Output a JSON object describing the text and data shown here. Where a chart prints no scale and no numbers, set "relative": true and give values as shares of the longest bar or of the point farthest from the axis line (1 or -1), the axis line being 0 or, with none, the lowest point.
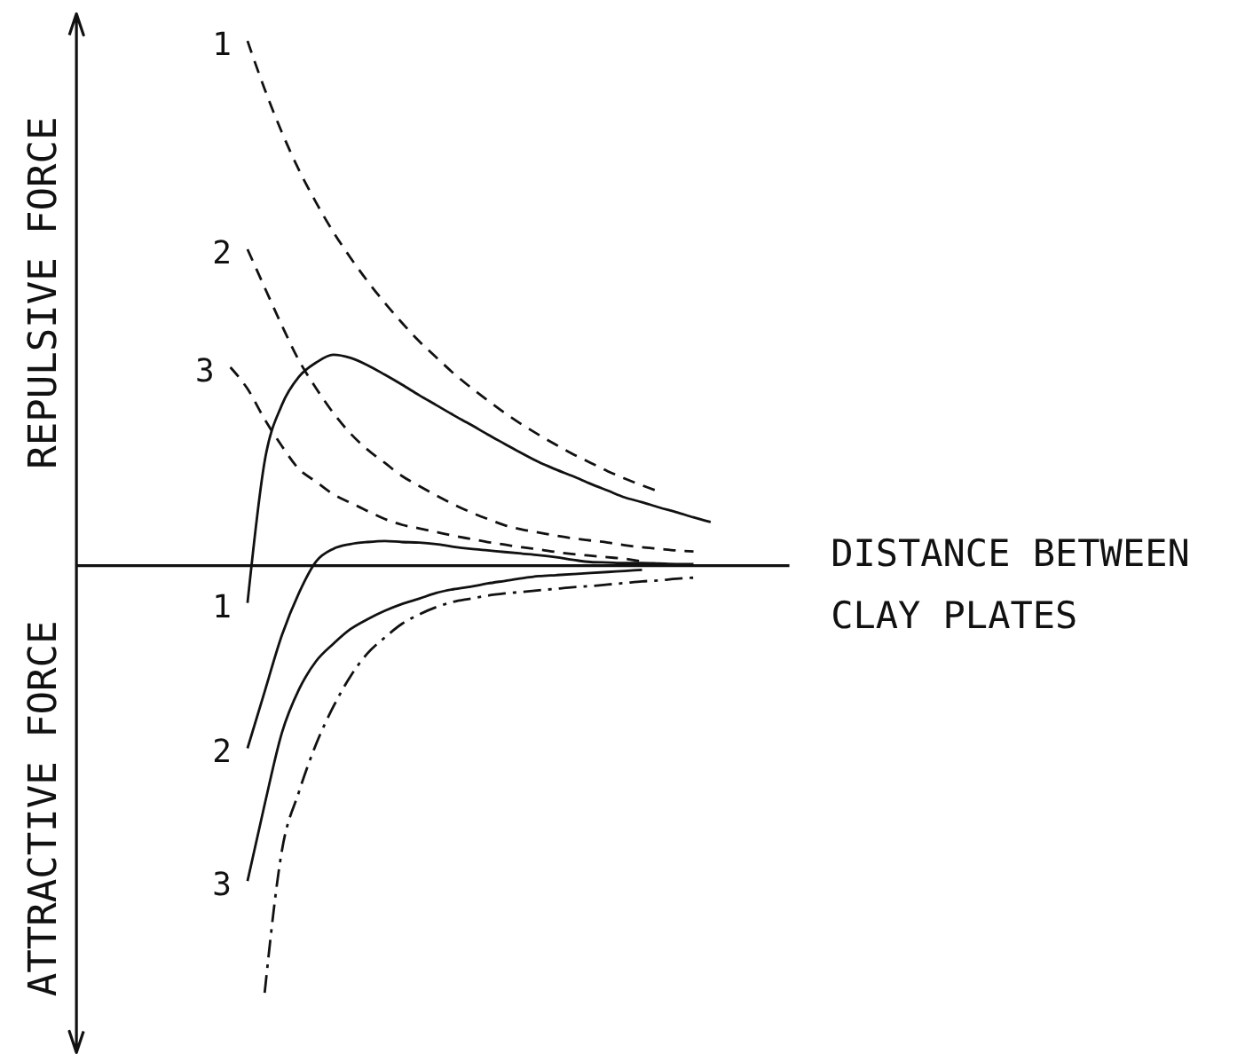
{
  "chart_data": {
    "type": "line",
    "relative": true,
    "ylabel": "REPULSIVE FORCE",
    "xlabel": "DISTANCE BETWEEN CLAY PLATES",
    "annotations": [
      "ATTRACTIVE FORCE"
    ],
    "categories": [
      null,
      null,
      null,
      null,
      null,
      null,
      null,
      null,
      null,
      null,
      null,
      null,
      null,
      null,
      null,
      null,
      null,
      null,
      null,
      null,
      null,
      null,
      null,
      null,
      null,
      null,
      null,
      null,
      null
    ],
    "series": [
      {
        "name": "1",
        "color": "#111111",
        "line_style": "dashed",
        "values": [
          null,
          1.0,
          0.908,
          0.826,
          0.754,
          0.692,
          0.636,
          0.587,
          0.542,
          0.501,
          0.463,
          0.428,
          0.397,
          0.367,
          0.34,
          0.315,
          0.291,
          0.269,
          0.249,
          0.23,
          0.212,
          0.196,
          0.18,
          0.166,
          0.153,
          0.141,
          null,
          null,
          null
        ]
      },
      {
        "name": "2",
        "color": "#111111",
        "line_style": "dashed",
        "values": [
          null,
          0.603,
          0.53,
          0.458,
          0.391,
          0.338,
          0.291,
          0.252,
          0.221,
          0.196,
          0.171,
          0.152,
          0.134,
          0.117,
          0.102,
          0.089,
          0.077,
          0.069,
          0.063,
          0.057,
          0.052,
          0.048,
          0.044,
          0.039,
          0.035,
          0.032,
          0.029,
          0.027,
          null
        ]
      },
      {
        "name": "3",
        "color": "#111111",
        "line_style": "dashed",
        "values": [
          0.378,
          0.337,
          0.279,
          0.228,
          0.184,
          0.16,
          0.136,
          0.12,
          0.104,
          0.089,
          0.078,
          0.071,
          0.064,
          0.057,
          0.051,
          0.045,
          0.04,
          0.035,
          0.031,
          0.026,
          0.022,
          0.019,
          0.016,
          0.013,
          0.008,
          null,
          null,
          null,
          null
        ]
      },
      {
        "name": "1",
        "color": "#111111",
        "line_style": "solid",
        "values": [
          null,
          -0.071,
          0.199,
          0.306,
          0.36,
          0.387,
          0.402,
          0.396,
          0.382,
          0.364,
          0.345,
          0.325,
          0.306,
          0.287,
          0.269,
          0.25,
          0.232,
          0.214,
          0.197,
          0.183,
          0.17,
          0.156,
          0.143,
          0.13,
          0.121,
          0.111,
          0.102,
          0.092,
          0.083
        ]
      },
      {
        "name": "2",
        "color": "#111111",
        "line_style": "solid",
        "values": [
          null,
          -0.348,
          -0.24,
          -0.133,
          -0.052,
          0.008,
          0.032,
          0.041,
          0.045,
          0.047,
          0.045,
          0.044,
          0.041,
          0.036,
          0.032,
          0.029,
          0.026,
          0.023,
          0.02,
          0.016,
          0.011,
          0.007,
          0.006,
          0.005,
          0.005,
          0.004,
          0.003,
          0.003,
          null
        ]
      },
      {
        "name": "3",
        "color": "#111111",
        "line_style": "solid",
        "values": [
          null,
          -0.601,
          -0.455,
          -0.319,
          -0.236,
          -0.182,
          -0.149,
          -0.121,
          -0.102,
          -0.086,
          -0.073,
          -0.063,
          -0.052,
          -0.045,
          -0.04,
          -0.034,
          -0.029,
          -0.024,
          -0.02,
          -0.018,
          -0.016,
          -0.014,
          -0.012,
          -0.01,
          -0.008,
          null,
          null,
          null,
          null
        ]
      },
      {
        "color": "#111111",
        "line_style": "dashdot",
        "values": [
          null,
          null,
          -0.814,
          -0.544,
          -0.431,
          -0.34,
          -0.269,
          -0.211,
          -0.167,
          -0.137,
          -0.111,
          -0.093,
          -0.079,
          -0.069,
          -0.063,
          -0.057,
          -0.053,
          -0.05,
          -0.047,
          -0.044,
          -0.041,
          -0.039,
          -0.036,
          -0.033,
          -0.03,
          -0.028,
          -0.025,
          -0.023,
          null
        ]
      }
    ]
  }
}
